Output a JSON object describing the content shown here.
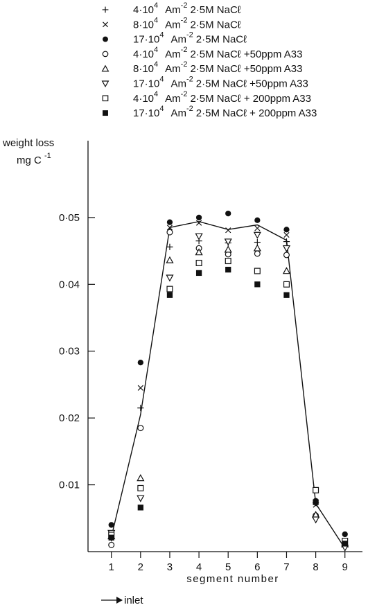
{
  "chart_data": {
    "type": "scatter",
    "xlabel": "segment number",
    "ylabel": [
      "weight loss",
      "mg C",
      "-1"
    ],
    "x_ticks": [
      1,
      2,
      3,
      4,
      5,
      6,
      7,
      8,
      9
    ],
    "y_ticks": [
      {
        "value": 0.01,
        "label": "0·01"
      },
      {
        "value": 0.02,
        "label": "0·02"
      },
      {
        "value": 0.03,
        "label": "0·03"
      },
      {
        "value": 0.04,
        "label": "0·04"
      },
      {
        "value": 0.05,
        "label": "0·05"
      }
    ],
    "xlim": [
      0.2,
      9.6
    ],
    "ylim": [
      0,
      0.0615
    ],
    "inlet_label": "inlet",
    "legend": [
      {
        "marker": "plus",
        "a": "4·10",
        "exp": "4",
        "b": "Am",
        "bexp": "-2",
        "c": "2·5M NaCℓ"
      },
      {
        "marker": "cross",
        "a": "8·10",
        "exp": "4",
        "b": "Am",
        "bexp": "-2",
        "c": "2·5M NaCℓ"
      },
      {
        "marker": "filled-circle",
        "a": "17·10",
        "exp": "4",
        "b": "Am",
        "bexp": "-2",
        "c": "2·5M NaCℓ"
      },
      {
        "marker": "open-circle",
        "a": "4·10",
        "exp": "4",
        "b": "Am",
        "bexp": "-2",
        "c": "2·5M NaCℓ +50ppm A33"
      },
      {
        "marker": "triangle-up",
        "a": "8·10",
        "exp": "4",
        "b": "Am",
        "bexp": "-2",
        "c": "2·5M NaCℓ +50ppm A33"
      },
      {
        "marker": "triangle-down",
        "a": "17·10",
        "exp": "4",
        "b": "Am",
        "bexp": "-2",
        "c": "2·5M NaCℓ +50ppm A33"
      },
      {
        "marker": "open-square",
        "a": "4·10",
        "exp": "4",
        "b": "Am",
        "bexp": "-2",
        "c": "2·5M NaCℓ + 200ppm A33"
      },
      {
        "marker": "filled-square",
        "a": "17·10",
        "exp": "4",
        "b": "Am",
        "bexp": "-2",
        "c": "2·5M NaCℓ + 200ppm A33"
      }
    ],
    "line": {
      "x": [
        1,
        2,
        3,
        4,
        5,
        6,
        7,
        8,
        9
      ],
      "y": [
        0.0022,
        0.0205,
        0.0485,
        0.0494,
        0.0482,
        0.0489,
        0.0466,
        0.0072,
        0.0005
      ]
    },
    "series": [
      {
        "marker": "plus",
        "x": [
          1,
          2,
          3,
          4,
          5,
          6,
          7,
          8,
          9
        ],
        "y": [
          0.002,
          0.0215,
          0.0456,
          0.0465,
          0.0462,
          0.0463,
          0.0464,
          0.0073,
          0.0007
        ]
      },
      {
        "marker": "cross",
        "x": [
          1,
          2,
          3,
          4,
          5,
          6,
          7,
          8,
          9
        ],
        "y": [
          0.0024,
          0.0245,
          0.0485,
          0.0492,
          0.0481,
          0.0484,
          0.0474,
          0.007,
          0.0012
        ]
      },
      {
        "marker": "filled-circle",
        "x": [
          1,
          2,
          3,
          4,
          5,
          6,
          7,
          8,
          9
        ],
        "y": [
          0.004,
          0.0283,
          0.0493,
          0.05,
          0.0506,
          0.0496,
          0.0482,
          0.0076,
          0.0026
        ]
      },
      {
        "marker": "open-circle",
        "x": [
          1,
          2,
          3,
          4,
          5,
          6,
          7,
          8,
          9
        ],
        "y": [
          0.001,
          0.0185,
          0.0478,
          0.0454,
          0.0445,
          0.0446,
          0.0444,
          0.0054,
          0.001
        ]
      },
      {
        "marker": "triangle-up",
        "x": [
          1,
          2,
          3,
          4,
          5,
          6,
          7,
          8,
          9
        ],
        "y": [
          0.0023,
          0.011,
          0.0436,
          0.0448,
          0.0452,
          0.0454,
          0.042,
          0.0055,
          0.0011
        ]
      },
      {
        "marker": "triangle-down",
        "x": [
          1,
          2,
          3,
          4,
          5,
          6,
          7,
          8,
          9
        ],
        "y": [
          0.0028,
          0.008,
          0.041,
          0.0472,
          0.0464,
          0.0474,
          0.0454,
          0.0048,
          0.0006
        ]
      },
      {
        "marker": "open-square",
        "x": [
          1,
          2,
          3,
          4,
          5,
          6,
          7,
          8,
          9
        ],
        "y": [
          0.0025,
          0.0095,
          0.0393,
          0.0432,
          0.0435,
          0.042,
          0.04,
          0.0092,
          0.0016
        ]
      },
      {
        "marker": "filled-square",
        "x": [
          1,
          2,
          3,
          4,
          5,
          6,
          7,
          8,
          9
        ],
        "y": [
          0.0021,
          0.0066,
          0.0384,
          0.0417,
          0.0422,
          0.04,
          0.0384,
          0.0074,
          0.0012
        ]
      }
    ]
  }
}
